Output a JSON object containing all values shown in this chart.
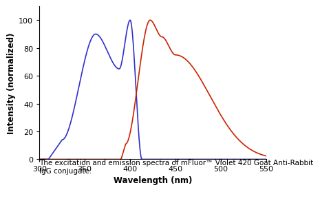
{
  "xlabel": "Wavelength (nm)",
  "ylabel": "Intensity (normalized)",
  "xlim": [
    300,
    550
  ],
  "ylim": [
    0,
    110
  ],
  "yticks": [
    0,
    20,
    40,
    60,
    80,
    100
  ],
  "xticks": [
    300,
    350,
    400,
    450,
    500,
    550
  ],
  "caption_line1": "The excitation and emission spectra of mFluor™ Violet 420 Goat Anti-Rabbit",
  "caption_line2": "IgG conjugate.",
  "excitation_color": "#3030cc",
  "emission_color": "#cc2200"
}
